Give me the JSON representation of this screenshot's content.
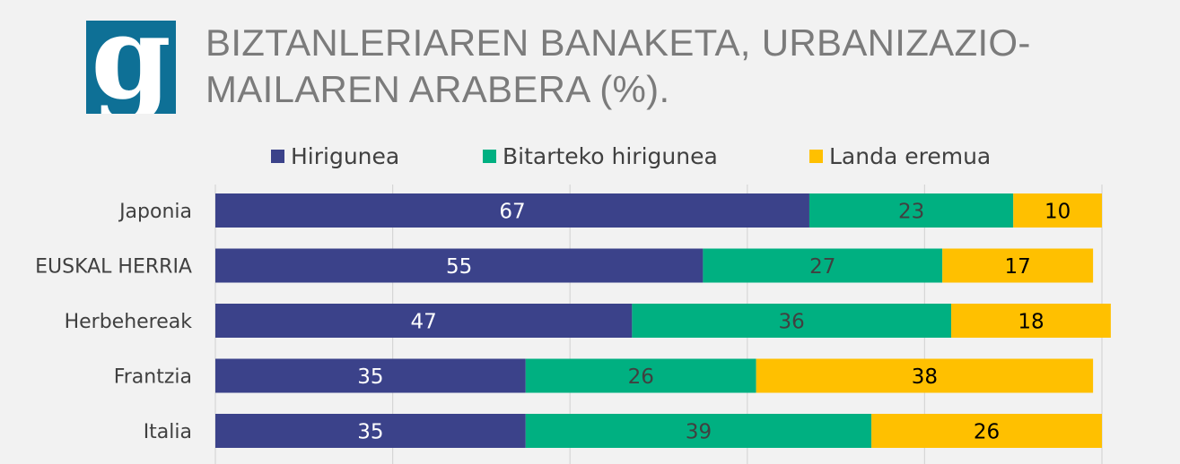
{
  "logo": {
    "glyph": "g",
    "color": "#0e7096"
  },
  "title": "BIZTANLERIAREN BANAKETA, URBANIZAZIO-MAILAREN ARABERA (%).",
  "chart_data": {
    "type": "bar",
    "orientation": "horizontal",
    "stacked": true,
    "title": "BIZTANLERIAREN BANAKETA, URBANIZAZIO-MAILAREN ARABERA (%).",
    "categories": [
      "Japonia",
      "EUSKAL HERRIA",
      "Herbehereak",
      "Frantzia",
      "Italia"
    ],
    "series": [
      {
        "name": "Hirigunea",
        "color": "#3b428a",
        "label_color": "#ffffff",
        "values": [
          67,
          55,
          47,
          35,
          35
        ]
      },
      {
        "name": "Bitarteko hirigunea",
        "color": "#00b081",
        "label_color": "#404040",
        "values": [
          23,
          27,
          36,
          26,
          39
        ]
      },
      {
        "name": "Landa eremua",
        "color": "#ffc000",
        "label_color": "#000000",
        "values": [
          10,
          17,
          18,
          38,
          26
        ]
      }
    ],
    "xlim": [
      0,
      100
    ],
    "grid": true,
    "legend_position": "top"
  }
}
